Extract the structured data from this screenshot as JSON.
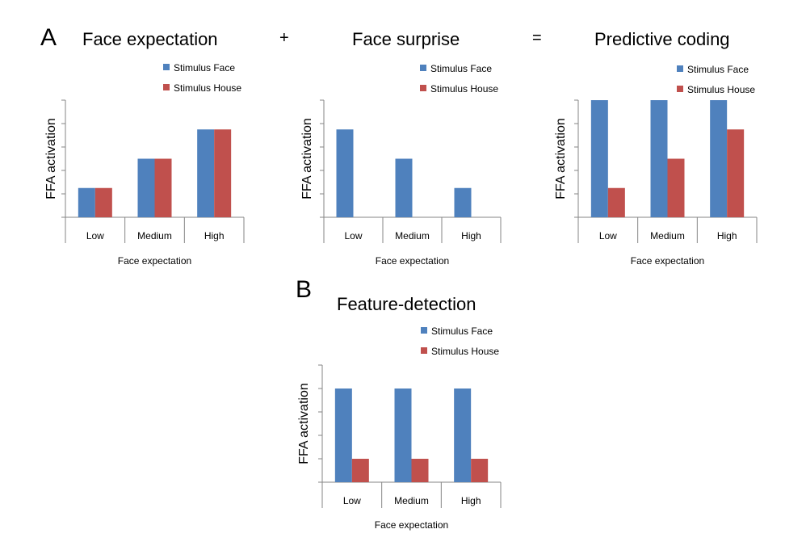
{
  "labels": {
    "panel_a": "A",
    "panel_b": "B",
    "plus": "+",
    "equals": "="
  },
  "colors": {
    "face": "#4F81BD",
    "house": "#C0504D",
    "axis": "#868686"
  },
  "chart_data": [
    {
      "type": "bar",
      "title": "Face expectation",
      "xlabel": "Face expectation",
      "ylabel": "FFA activation",
      "categories": [
        "Low",
        "Medium",
        "High"
      ],
      "ylim": [
        0,
        5
      ],
      "ticks": [
        0,
        1,
        2,
        3,
        4,
        5
      ],
      "legend": "top-right",
      "series": [
        {
          "name": "Stimulus Face",
          "values": [
            1.25,
            2.5,
            3.75
          ]
        },
        {
          "name": "Stimulus House",
          "values": [
            1.25,
            2.5,
            3.75
          ]
        }
      ]
    },
    {
      "type": "bar",
      "title": "Face surprise",
      "xlabel": "Face expectation",
      "ylabel": "FFA activation",
      "categories": [
        "Low",
        "Medium",
        "High"
      ],
      "ylim": [
        0,
        5
      ],
      "ticks": [
        0,
        1,
        2,
        3,
        4,
        5
      ],
      "legend": "top-right",
      "series": [
        {
          "name": "Stimulus Face",
          "values": [
            3.75,
            2.5,
            1.25
          ]
        },
        {
          "name": "Stimulus House",
          "values": [
            0,
            0,
            0
          ]
        }
      ]
    },
    {
      "type": "bar",
      "title": "Predictive coding",
      "xlabel": "Face expectation",
      "ylabel": "FFA activation",
      "categories": [
        "Low",
        "Medium",
        "High"
      ],
      "ylim": [
        0,
        5
      ],
      "ticks": [
        0,
        1,
        2,
        3,
        4,
        5
      ],
      "legend": "top-right",
      "series": [
        {
          "name": "Stimulus Face",
          "values": [
            5,
            5,
            5
          ]
        },
        {
          "name": "Stimulus House",
          "values": [
            1.25,
            2.5,
            3.75
          ]
        }
      ]
    },
    {
      "type": "bar",
      "title": "Feature-detection",
      "xlabel": "Face expectation",
      "ylabel": "FFA activation",
      "categories": [
        "Low",
        "Medium",
        "High"
      ],
      "ylim": [
        0,
        5
      ],
      "ticks": [
        0,
        1,
        2,
        3,
        4,
        5
      ],
      "legend": "top-right",
      "series": [
        {
          "name": "Stimulus Face",
          "values": [
            4,
            4,
            4
          ]
        },
        {
          "name": "Stimulus House",
          "values": [
            1,
            1,
            1
          ]
        }
      ]
    }
  ]
}
